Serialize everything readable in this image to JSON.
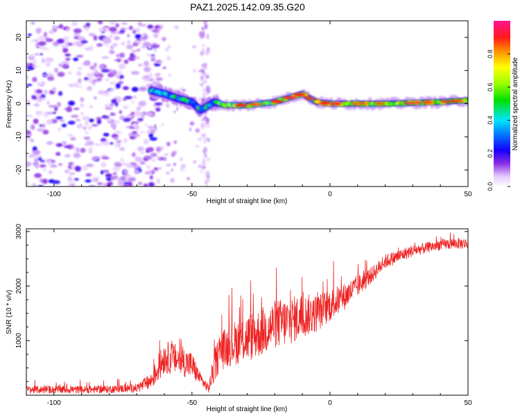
{
  "figure": {
    "title": "PAZ1.2025.142.09.35.G20"
  },
  "colors": {
    "snr_line": "#ee2222",
    "background": "#ffffff",
    "axis": "#000000"
  },
  "chart_data": [
    {
      "type": "heatmap",
      "title": "PAZ1.2025.142.09.35.G20",
      "xlabel": "Height of straight line (km)",
      "ylabel": "Frequency (Hz)",
      "xlim": [
        -110,
        50
      ],
      "ylim": [
        -25,
        25
      ],
      "xticks": [
        -100,
        -50,
        0,
        50
      ],
      "yticks": [
        -20,
        -10,
        0,
        10,
        20
      ],
      "grid": false,
      "description_of_structure": {
        "ridge_frequency_hz": [
          {
            "x": -65,
            "y": 4
          },
          {
            "x": -60,
            "y": 3
          },
          {
            "x": -55,
            "y": 1.5
          },
          {
            "x": -50,
            "y": 0.5
          },
          {
            "x": -47,
            "y": -2
          },
          {
            "x": -42,
            "y": 0.5
          },
          {
            "x": -38,
            "y": -0.5
          },
          {
            "x": -30,
            "y": -0.5
          },
          {
            "x": -20,
            "y": 0.5
          },
          {
            "x": -10,
            "y": 3
          },
          {
            "x": -5,
            "y": 0.5
          },
          {
            "x": 0,
            "y": 0
          },
          {
            "x": 20,
            "y": 0
          },
          {
            "x": 40,
            "y": 0.5
          },
          {
            "x": 50,
            "y": 1
          }
        ],
        "noise_region_km": [
          -110,
          -65
        ]
      },
      "colorbar": {
        "label": "Normalized spectral amplitude",
        "range": [
          0,
          1
        ],
        "ticks": [
          "0.0",
          "0.2",
          "0.4",
          "0.6",
          "0.8"
        ],
        "tick_values": [
          0.0,
          0.2,
          0.4,
          0.6,
          0.8
        ]
      }
    },
    {
      "type": "line",
      "title": "",
      "xlabel": "Height of straight line (km)",
      "ylabel": "SNR (10 * v/v)",
      "xlim": [
        -110,
        50
      ],
      "ylim": [
        0,
        3050
      ],
      "xticks": [
        -100,
        -50,
        0,
        50
      ],
      "yticks": [
        1000,
        2000,
        3000
      ],
      "grid": false,
      "series": [
        {
          "name": "SNR",
          "x": [
            -110,
            -100,
            -90,
            -80,
            -70,
            -65,
            -62,
            -60,
            -55,
            -50,
            -47,
            -44,
            -42,
            -40,
            -35,
            -30,
            -25,
            -20,
            -15,
            -10,
            -5,
            0,
            5,
            10,
            15,
            20,
            25,
            30,
            35,
            40,
            45,
            50
          ],
          "y": [
            100,
            105,
            100,
            110,
            130,
            250,
            500,
            700,
            650,
            550,
            300,
            120,
            500,
            800,
            950,
            1050,
            1150,
            1300,
            1350,
            1450,
            1500,
            1650,
            1800,
            2000,
            2200,
            2450,
            2550,
            2650,
            2700,
            2760,
            2780,
            2780
          ],
          "noise_amplitude": [
            70,
            70,
            70,
            70,
            80,
            150,
            250,
            300,
            280,
            250,
            120,
            80,
            300,
            350,
            400,
            450,
            450,
            450,
            450,
            400,
            350,
            300,
            250,
            200,
            150,
            130,
            120,
            110,
            100,
            100,
            100,
            100
          ]
        }
      ]
    }
  ]
}
